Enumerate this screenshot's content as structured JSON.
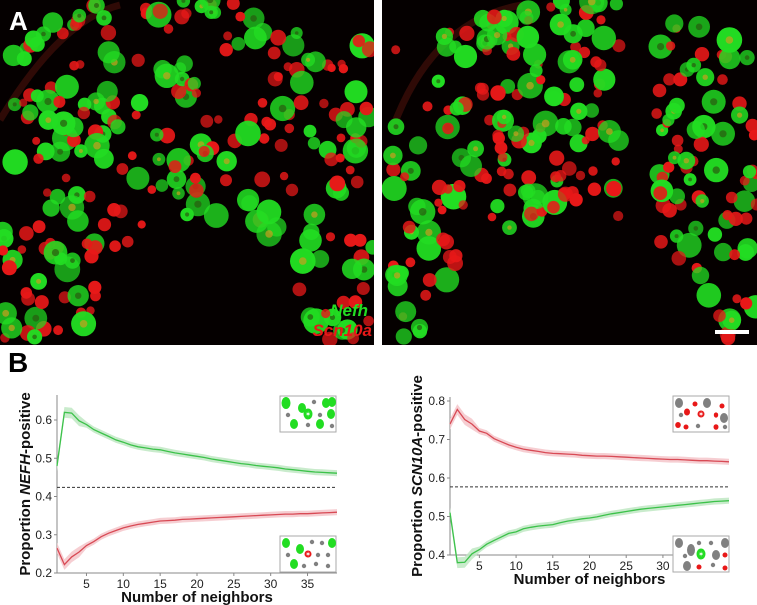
{
  "figure": {
    "panel_a": {
      "letter": "A",
      "legend": {
        "green_label": "Nefh",
        "red_label": "Scn10a"
      },
      "colors": {
        "green": "#22dd22",
        "red": "#e81818",
        "background": "#050000"
      },
      "scale_bar": "white bar, bottom-right of right image"
    },
    "panel_b": {
      "letter": "B"
    }
  },
  "chart_data": [
    {
      "type": "line",
      "title": "",
      "xlabel": "Number of neighbors",
      "ylabel_prefix": "Proportion ",
      "ylabel_gene": "NEFH",
      "ylabel_suffix": "-positive",
      "xlim": [
        1,
        39
      ],
      "ylim": [
        0.2,
        0.65
      ],
      "xticks": [
        5,
        10,
        15,
        20,
        25,
        30,
        35
      ],
      "yticks": [
        0.2,
        0.3,
        0.4,
        0.5,
        0.6
      ],
      "ytick_labels": [
        "0.2",
        "0.3",
        "0.4",
        "0.5",
        "0.6"
      ],
      "grid": false,
      "baseline": 0.424,
      "x": [
        1,
        2,
        3,
        4,
        5,
        6,
        7,
        8,
        9,
        10,
        11,
        12,
        13,
        14,
        15,
        16,
        17,
        18,
        19,
        20,
        21,
        22,
        23,
        24,
        25,
        26,
        27,
        28,
        29,
        30,
        31,
        32,
        33,
        34,
        35,
        36,
        37,
        38,
        39
      ],
      "series": [
        {
          "name": "NEFH+ neighbors of NEFH+ cell",
          "color": "#3cc24a",
          "band": "#bfe8c3",
          "values": [
            0.48,
            0.62,
            0.618,
            0.598,
            0.588,
            0.575,
            0.566,
            0.557,
            0.548,
            0.542,
            0.535,
            0.53,
            0.527,
            0.524,
            0.522,
            0.518,
            0.514,
            0.511,
            0.508,
            0.505,
            0.502,
            0.498,
            0.495,
            0.492,
            0.489,
            0.486,
            0.484,
            0.481,
            0.479,
            0.477,
            0.475,
            0.472,
            0.47,
            0.468,
            0.466,
            0.464,
            0.463,
            0.462,
            0.461
          ]
        },
        {
          "name": "NEFH+ neighbors of SCN10A+ cell",
          "color": "#d84a55",
          "band": "#f4c6ca",
          "values": [
            0.265,
            0.222,
            0.242,
            0.255,
            0.272,
            0.282,
            0.295,
            0.304,
            0.311,
            0.318,
            0.323,
            0.327,
            0.33,
            0.333,
            0.336,
            0.337,
            0.338,
            0.34,
            0.341,
            0.342,
            0.343,
            0.344,
            0.345,
            0.346,
            0.347,
            0.348,
            0.349,
            0.35,
            0.351,
            0.352,
            0.353,
            0.354,
            0.354,
            0.355,
            0.355,
            0.356,
            0.357,
            0.358,
            0.359
          ]
        }
      ],
      "insets": [
        {
          "position": "top-right",
          "center_cell": "green",
          "neighbors": "mostly green"
        },
        {
          "position": "bottom-right",
          "center_cell": "red",
          "neighbors": "mixed gray/green"
        }
      ]
    },
    {
      "type": "line",
      "title": "",
      "xlabel": "Number of neighbors",
      "ylabel_prefix": "Proportion ",
      "ylabel_gene": "SCN10A",
      "ylabel_suffix": "-positive",
      "xlim": [
        1,
        39
      ],
      "ylim": [
        0.34,
        0.81
      ],
      "xticks": [
        5,
        10,
        15,
        20,
        25,
        30,
        35
      ],
      "yticks": [
        0.4,
        0.5,
        0.6,
        0.7,
        0.8
      ],
      "ytick_labels": [
        "0.4",
        "0.5",
        "0.6",
        "0.7",
        "0.8"
      ],
      "grid": false,
      "baseline": 0.577,
      "x": [
        1,
        2,
        3,
        4,
        5,
        6,
        7,
        8,
        9,
        10,
        11,
        12,
        13,
        14,
        15,
        16,
        17,
        18,
        19,
        20,
        21,
        22,
        23,
        24,
        25,
        26,
        27,
        28,
        29,
        30,
        31,
        32,
        33,
        34,
        35,
        36,
        37,
        38,
        39
      ],
      "series": [
        {
          "name": "SCN10A+ neighbors of SCN10A+ cell",
          "color": "#d84a55",
          "band": "#f4c6ca",
          "values": [
            0.74,
            0.778,
            0.752,
            0.74,
            0.722,
            0.716,
            0.702,
            0.694,
            0.686,
            0.68,
            0.675,
            0.672,
            0.669,
            0.666,
            0.664,
            0.663,
            0.662,
            0.661,
            0.659,
            0.658,
            0.657,
            0.657,
            0.656,
            0.655,
            0.654,
            0.653,
            0.652,
            0.651,
            0.65,
            0.649,
            0.648,
            0.648,
            0.647,
            0.646,
            0.645,
            0.645,
            0.644,
            0.643,
            0.642
          ]
        },
        {
          "name": "SCN10A+ neighbors of NEFH+ cell",
          "color": "#3cc24a",
          "band": "#bfe8c3",
          "values": [
            0.51,
            0.38,
            0.381,
            0.403,
            0.414,
            0.428,
            0.438,
            0.447,
            0.456,
            0.46,
            0.468,
            0.472,
            0.475,
            0.477,
            0.479,
            0.484,
            0.488,
            0.491,
            0.494,
            0.496,
            0.499,
            0.503,
            0.507,
            0.51,
            0.513,
            0.516,
            0.519,
            0.521,
            0.523,
            0.525,
            0.527,
            0.529,
            0.531,
            0.533,
            0.535,
            0.537,
            0.539,
            0.54,
            0.541
          ]
        }
      ],
      "insets": [
        {
          "position": "top-right",
          "center_cell": "red",
          "neighbors": "mostly red"
        },
        {
          "position": "bottom-right",
          "center_cell": "green",
          "neighbors": "mixed gray/red"
        }
      ]
    }
  ]
}
